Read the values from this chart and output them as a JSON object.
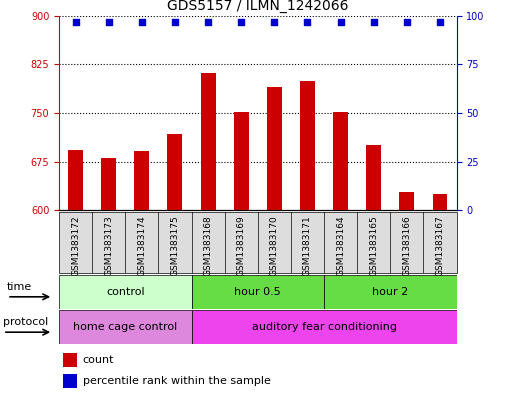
{
  "title": "GDS5157 / ILMN_1242066",
  "samples": [
    "GSM1383172",
    "GSM1383173",
    "GSM1383174",
    "GSM1383175",
    "GSM1383168",
    "GSM1383169",
    "GSM1383170",
    "GSM1383171",
    "GSM1383164",
    "GSM1383165",
    "GSM1383166",
    "GSM1383167"
  ],
  "bar_values": [
    693,
    680,
    692,
    718,
    812,
    752,
    790,
    800,
    752,
    700,
    628,
    625
  ],
  "percentile_values": [
    97,
    97,
    97,
    97,
    97,
    97,
    97,
    97,
    97,
    97,
    97,
    97
  ],
  "ylim_left": [
    600,
    900
  ],
  "ylim_right": [
    0,
    100
  ],
  "yticks_left": [
    600,
    675,
    750,
    825,
    900
  ],
  "yticks_right": [
    0,
    25,
    50,
    75,
    100
  ],
  "bar_color": "#cc0000",
  "dot_color": "#0000cc",
  "bar_width": 0.45,
  "grid_color": "#000000",
  "time_groups": [
    {
      "label": "control",
      "start": 0,
      "end": 4,
      "color": "#ccffcc"
    },
    {
      "label": "hour 0.5",
      "start": 4,
      "end": 8,
      "color": "#66dd44"
    },
    {
      "label": "hour 2",
      "start": 8,
      "end": 12,
      "color": "#66dd44"
    }
  ],
  "protocol_groups": [
    {
      "label": "home cage control",
      "start": 0,
      "end": 4,
      "color": "#dd88dd"
    },
    {
      "label": "auditory fear conditioning",
      "start": 4,
      "end": 12,
      "color": "#ee44ee"
    }
  ],
  "time_label": "time",
  "protocol_label": "protocol",
  "legend_count": "count",
  "legend_percentile": "percentile rank within the sample",
  "title_fontsize": 10,
  "left_color": "#cc0000",
  "right_color": "#0000cc",
  "tick_fontsize": 7,
  "label_fontsize": 8,
  "xtick_bg": "#dddddd"
}
